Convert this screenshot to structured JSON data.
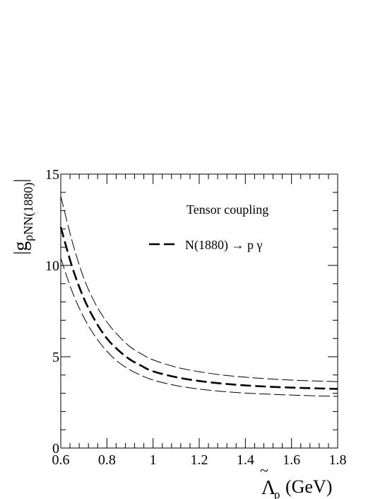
{
  "chart_data": {
    "type": "line",
    "xlim": [
      0.6,
      1.8
    ],
    "ylim": [
      0,
      15
    ],
    "xticks": [
      "0.6",
      "0.8",
      "1",
      "1.2",
      "1.4",
      "1.6",
      "1.8"
    ],
    "yticks": [
      "0",
      "5",
      "10",
      "15"
    ],
    "xlabel": {
      "symbol": "Λ",
      "subscript": "ρ",
      "unit": "(GeV)"
    },
    "ylabel": {
      "main": "g",
      "subscript": "ρNN(1880)"
    },
    "legend": {
      "title": "Tensor coupling",
      "entry": "N(1880) → p γ"
    },
    "series": [
      {
        "role": "central",
        "x": [
          0.6,
          0.65,
          0.7,
          0.75,
          0.8,
          0.85,
          0.9,
          0.95,
          1.0,
          1.1,
          1.2,
          1.3,
          1.4,
          1.5,
          1.6,
          1.7,
          1.8
        ],
        "y": [
          12.1,
          9.9,
          8.2,
          6.95,
          6.0,
          5.35,
          4.85,
          4.5,
          4.2,
          3.88,
          3.67,
          3.53,
          3.43,
          3.36,
          3.31,
          3.27,
          3.24
        ]
      },
      {
        "role": "upper",
        "x": [
          0.6,
          0.65,
          0.7,
          0.75,
          0.8,
          0.85,
          0.9,
          0.95,
          1.0,
          1.1,
          1.2,
          1.3,
          1.4,
          1.5,
          1.6,
          1.7,
          1.8
        ],
        "y": [
          13.8,
          11.3,
          9.3,
          7.9,
          6.9,
          6.15,
          5.55,
          5.15,
          4.83,
          4.43,
          4.18,
          4.0,
          3.88,
          3.79,
          3.72,
          3.67,
          3.64
        ]
      },
      {
        "role": "lower",
        "x": [
          0.6,
          0.65,
          0.7,
          0.75,
          0.8,
          0.85,
          0.9,
          0.95,
          1.0,
          1.1,
          1.2,
          1.3,
          1.4,
          1.5,
          1.6,
          1.7,
          1.8
        ],
        "y": [
          10.4,
          8.55,
          7.15,
          6.1,
          5.3,
          4.7,
          4.28,
          3.97,
          3.72,
          3.42,
          3.23,
          3.1,
          3.01,
          2.95,
          2.9,
          2.86,
          2.83
        ]
      }
    ]
  }
}
